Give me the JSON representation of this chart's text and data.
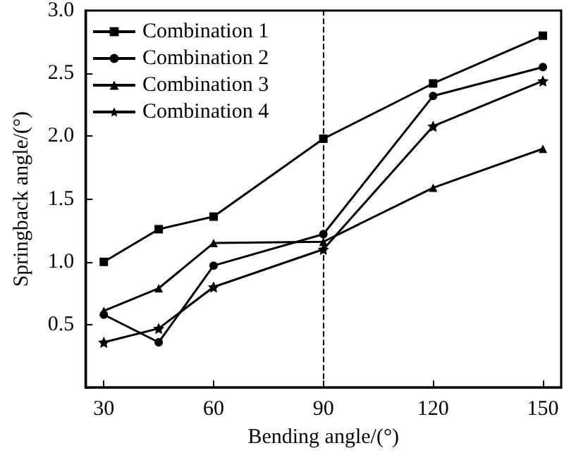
{
  "chart_data": {
    "type": "line",
    "xlabel": "Bending angle/(°)",
    "ylabel": "Springback angle/(°)",
    "x": [
      30,
      45,
      60,
      90,
      120,
      150
    ],
    "series": [
      {
        "name": "Combination 1",
        "color": "#000000",
        "marker": "square",
        "values": [
          1.0,
          1.26,
          1.36,
          1.98,
          2.42,
          2.8
        ]
      },
      {
        "name": "Combination 2",
        "color": "#000000",
        "marker": "circle",
        "values": [
          0.58,
          0.36,
          0.97,
          1.22,
          2.32,
          2.55
        ]
      },
      {
        "name": "Combination 3",
        "color": "#000000",
        "marker": "triangle",
        "values": [
          0.61,
          0.79,
          1.15,
          1.16,
          1.59,
          1.9
        ]
      },
      {
        "name": "Combination 4",
        "color": "#000000",
        "marker": "star",
        "values": [
          0.36,
          0.47,
          0.8,
          1.1,
          2.08,
          2.44
        ]
      }
    ],
    "xlim": [
      25,
      155
    ],
    "xticks": [
      30,
      60,
      90,
      120,
      150
    ],
    "ylim": [
      0,
      3
    ],
    "yticks": [
      {
        "value": 0,
        "label": null
      },
      {
        "value": 0.5,
        "label": "0.5"
      },
      {
        "value": 1,
        "label": "1.0"
      },
      {
        "value": 1.5,
        "label": "1.5"
      },
      {
        "value": 2,
        "label": "2.0"
      },
      {
        "value": 2.5,
        "label": "2.5"
      },
      {
        "value": 3,
        "label": "3.0"
      }
    ],
    "ref_lines": [
      {
        "axis": "x",
        "value": 90,
        "line_style": "dashed",
        "color": "#000000"
      }
    ],
    "grid": false,
    "legend": "top left",
    "line_style": "solid"
  }
}
